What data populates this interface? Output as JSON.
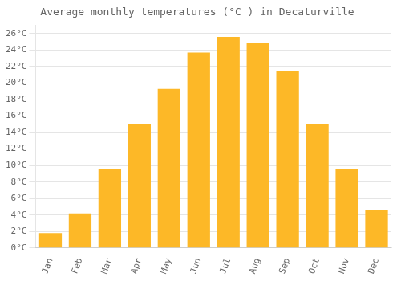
{
  "chart_data": {
    "type": "bar",
    "title": "Average monthly temperatures (°C ) in Decaturville",
    "categories": [
      "Jan",
      "Feb",
      "Mar",
      "Apr",
      "May",
      "Jun",
      "Jul",
      "Aug",
      "Sep",
      "Oct",
      "Nov",
      "Dec"
    ],
    "values": [
      1.8,
      4.2,
      9.6,
      15.0,
      19.3,
      23.7,
      25.6,
      24.9,
      21.4,
      15.0,
      9.6,
      4.6
    ],
    "color": "#FDB827",
    "ylim": [
      0,
      27
    ],
    "yticks": [
      {
        "value": 0,
        "label": "0°C"
      },
      {
        "value": 2,
        "label": "2°C"
      },
      {
        "value": 4,
        "label": "4°C"
      },
      {
        "value": 6,
        "label": "6°C"
      },
      {
        "value": 8,
        "label": "8°C"
      },
      {
        "value": 10,
        "label": "10°C"
      },
      {
        "value": 12,
        "label": "12°C"
      },
      {
        "value": 14,
        "label": "14°C"
      },
      {
        "value": 16,
        "label": "16°C"
      },
      {
        "value": 18,
        "label": "18°C"
      },
      {
        "value": 20,
        "label": "20°C"
      },
      {
        "value": 22,
        "label": "22°C"
      },
      {
        "value": 24,
        "label": "24°C"
      },
      {
        "value": 26,
        "label": "26°C"
      }
    ],
    "grid": true
  }
}
